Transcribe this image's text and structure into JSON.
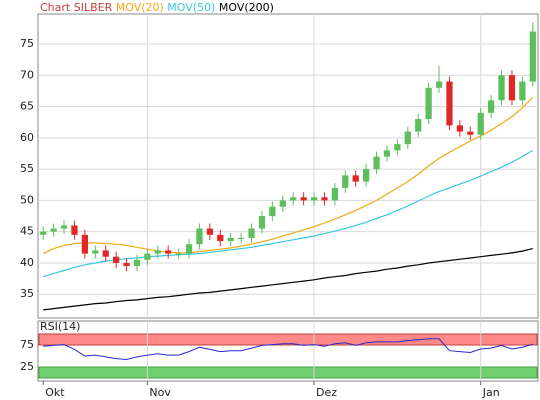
{
  "chart_data": [
    {
      "type": "candlestick",
      "title": "Chart SILBER",
      "title_color": "#c84040",
      "categories": [
        "Okt",
        null,
        null,
        null,
        null,
        null,
        null,
        null,
        null,
        null,
        "Nov",
        null,
        null,
        null,
        null,
        null,
        null,
        null,
        null,
        null,
        null,
        null,
        null,
        null,
        null,
        null,
        "Dez",
        null,
        null,
        null,
        null,
        null,
        null,
        null,
        null,
        null,
        null,
        null,
        null,
        null,
        null,
        null,
        "Jan",
        null,
        null,
        null,
        null,
        null
      ],
      "open": [
        44.5,
        45,
        45.5,
        46,
        44.5,
        41.5,
        42,
        41,
        40,
        39.5,
        40.5,
        41.5,
        42,
        41.5,
        41.5,
        43,
        45.5,
        44.5,
        43.5,
        44,
        44,
        45.5,
        47.5,
        49,
        50,
        50.5,
        50,
        50.5,
        50,
        52,
        54,
        53,
        55,
        57,
        58,
        59,
        61,
        63,
        68,
        69,
        62,
        61,
        60.5,
        64,
        66,
        70,
        66,
        69
      ],
      "high": [
        45.8,
        46.3,
        46.8,
        46.8,
        45.3,
        42.8,
        42.8,
        41.8,
        40.8,
        41.3,
        42.3,
        42.8,
        42.8,
        42.3,
        43.8,
        46.3,
        46.3,
        45.3,
        44.8,
        44.8,
        46.3,
        48.3,
        49.8,
        50.8,
        51.3,
        51.3,
        51.3,
        51.3,
        52.8,
        54.8,
        54.8,
        55.8,
        57.8,
        58.8,
        59.8,
        61.8,
        63.8,
        68.8,
        71.5,
        69.8,
        62.8,
        61.8,
        64.8,
        66.8,
        70.8,
        70.8,
        69.8,
        78.5
      ],
      "low": [
        43.7,
        44.2,
        44.7,
        43.7,
        40.7,
        40.7,
        40.2,
        39.2,
        38.7,
        38.7,
        39.7,
        40.7,
        40.7,
        40.7,
        40.7,
        42.2,
        43.7,
        42.7,
        42.7,
        43.2,
        43.2,
        44.7,
        46.7,
        48.2,
        49.2,
        49.2,
        49.2,
        49.2,
        49.2,
        51.2,
        52.2,
        52.2,
        54.2,
        56.2,
        57.2,
        58.2,
        60.2,
        62.2,
        67.2,
        61.2,
        60.2,
        59.7,
        59.7,
        63.2,
        65.2,
        65.2,
        65.2,
        68.2
      ],
      "close": [
        45,
        45.5,
        46,
        44.5,
        41.5,
        42,
        41,
        40,
        39.5,
        40.5,
        41.5,
        42,
        41.5,
        41.5,
        43,
        45.5,
        44.5,
        43.5,
        44,
        44,
        45.5,
        47.5,
        49,
        50,
        50.5,
        50,
        50.5,
        50,
        52,
        54,
        53,
        55,
        57,
        58,
        59,
        61,
        63,
        68,
        69,
        62,
        61,
        60.5,
        64,
        66,
        70,
        66,
        69,
        77
      ],
      "up_color": "#5cbf5c",
      "down_color": "#e02828",
      "series": [
        {
          "name": "MOV(20)",
          "color": "#f0a818",
          "values": [
            41.5,
            42.3,
            42.8,
            43.1,
            43.2,
            43.2,
            43.1,
            43,
            42.8,
            42.5,
            42.2,
            41.9,
            41.7,
            41.6,
            41.6,
            41.8,
            42,
            42.2,
            42.4,
            42.7,
            43,
            43.4,
            43.8,
            44.3,
            44.8,
            45.3,
            45.8,
            46.4,
            47,
            47.7,
            48.4,
            49.2,
            50,
            51,
            52,
            53,
            54.2,
            55.5,
            56.7,
            57.7,
            58.6,
            59.5,
            60.3,
            61.2,
            62.3,
            63.4,
            64.8,
            66.5
          ]
        },
        {
          "name": "MOV(50)",
          "color": "#38c8dc",
          "values": [
            37.8,
            38.3,
            38.8,
            39.3,
            39.7,
            40,
            40.3,
            40.5,
            40.7,
            40.8,
            41,
            41.1,
            41.2,
            41.3,
            41.4,
            41.5,
            41.7,
            41.9,
            42.1,
            42.3,
            42.5,
            42.8,
            43.1,
            43.4,
            43.7,
            44,
            44.3,
            44.7,
            45.1,
            45.5,
            46,
            46.5,
            47.1,
            47.7,
            48.4,
            49.1,
            49.9,
            50.7,
            51.4,
            52,
            52.6,
            53.2,
            53.9,
            54.6,
            55.3,
            56.1,
            57,
            58
          ]
        },
        {
          "name": "MOV(200)",
          "color": "#000000",
          "values": [
            32.5,
            32.7,
            32.9,
            33.1,
            33.3,
            33.5,
            33.6,
            33.8,
            34,
            34.1,
            34.3,
            34.5,
            34.6,
            34.8,
            35,
            35.2,
            35.3,
            35.5,
            35.7,
            35.9,
            36.1,
            36.3,
            36.5,
            36.7,
            36.9,
            37.1,
            37.3,
            37.6,
            37.8,
            38,
            38.3,
            38.5,
            38.7,
            39,
            39.2,
            39.5,
            39.7,
            40,
            40.2,
            40.4,
            40.6,
            40.8,
            41,
            41.2,
            41.4,
            41.6,
            41.9,
            42.3
          ]
        }
      ],
      "ylim": [
        31.2,
        79.8
      ],
      "yticks": [
        35,
        40,
        45,
        50,
        55,
        60,
        65,
        70,
        75
      ],
      "grid": true
    },
    {
      "type": "line",
      "title": "RSI(14)",
      "color": "#2828d0",
      "values": [
        72,
        74,
        76,
        65,
        50,
        52,
        48,
        44,
        42,
        48,
        52,
        55,
        52,
        52,
        60,
        70,
        65,
        60,
        62,
        62,
        68,
        74,
        76,
        78,
        78,
        74,
        76,
        72,
        78,
        80,
        74,
        80,
        82,
        82,
        82,
        85,
        87,
        89,
        89,
        62,
        60,
        58,
        66,
        68,
        74,
        66,
        70,
        77
      ],
      "ylim": [
        0,
        100
      ],
      "yticks": [
        25,
        75
      ],
      "upper_band_color": "#ff8888",
      "lower_band_color": "#70d070",
      "grid": true
    }
  ]
}
